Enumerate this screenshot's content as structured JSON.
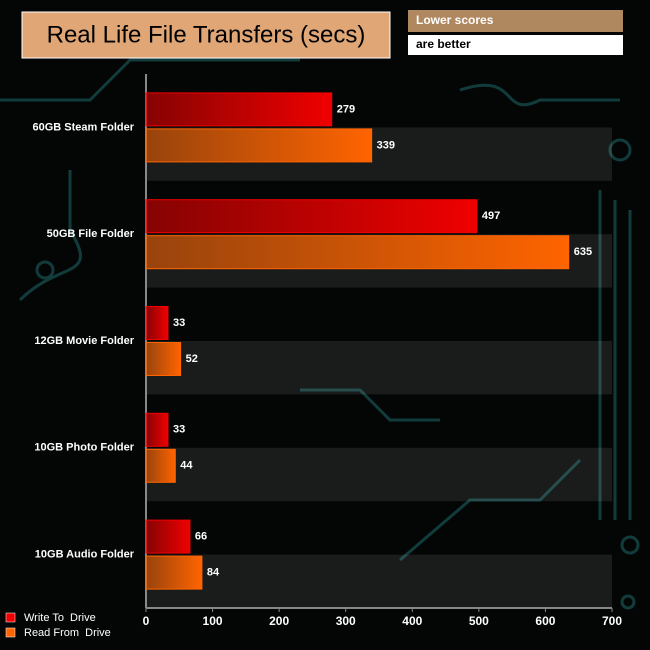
{
  "chart_data": {
    "type": "hbar",
    "title": "Real Life File Transfers (secs)",
    "annotations": [
      "Lower scores",
      "are better"
    ],
    "categories": [
      "60GB Steam Folder",
      "50GB File Folder",
      "12GB Movie Folder",
      "10GB Photo Folder",
      "10GB Audio Folder"
    ],
    "series": [
      {
        "name": "Write To  Drive",
        "color": "#f00000",
        "values": [
          279,
          497,
          33,
          33,
          66
        ]
      },
      {
        "name": "Read From  Drive",
        "color": "#ff6400",
        "values": [
          339,
          635,
          52,
          44,
          84
        ]
      }
    ],
    "xlim": [
      0,
      700
    ],
    "xticks": [
      0,
      100,
      200,
      300,
      400,
      500,
      600,
      700
    ],
    "legend": "bottom-left"
  }
}
